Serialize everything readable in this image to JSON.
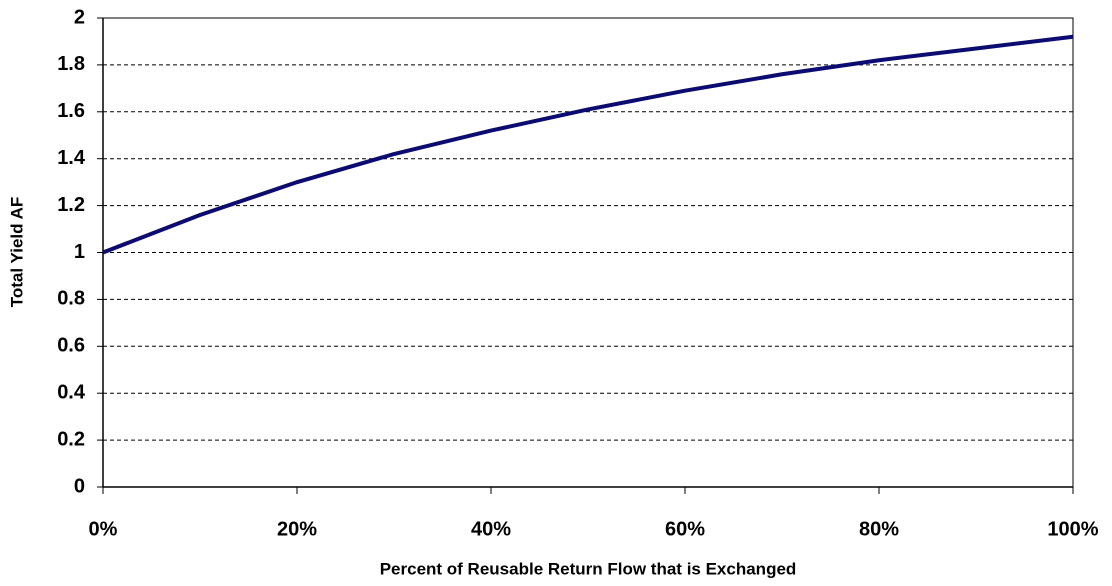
{
  "chart_data": {
    "type": "line",
    "xlabel": "Percent of Reusable Return Flow that is Exchanged",
    "ylabel": "Total Yield AF",
    "x": [
      0,
      5,
      10,
      20,
      30,
      40,
      50,
      60,
      70,
      80,
      90,
      100
    ],
    "series": [
      {
        "name": "Total Yield AF",
        "color": "#0b0b72",
        "values": [
          1.0,
          1.08,
          1.16,
          1.3,
          1.42,
          1.52,
          1.61,
          1.69,
          1.76,
          1.82,
          1.87,
          1.92
        ]
      }
    ],
    "xlim": [
      0,
      100
    ],
    "xticks": [
      {
        "value": 0,
        "label": "0%"
      },
      {
        "value": 20,
        "label": "20%"
      },
      {
        "value": 40,
        "label": "40%"
      },
      {
        "value": 60,
        "label": "60%"
      },
      {
        "value": 80,
        "label": "80%"
      },
      {
        "value": 100,
        "label": "100%"
      }
    ],
    "ylim": [
      0,
      2
    ],
    "yticks": [
      0,
      0.2,
      0.4,
      0.6,
      0.8,
      1,
      1.2,
      1.4,
      1.6,
      1.8,
      2
    ],
    "grid": true
  }
}
